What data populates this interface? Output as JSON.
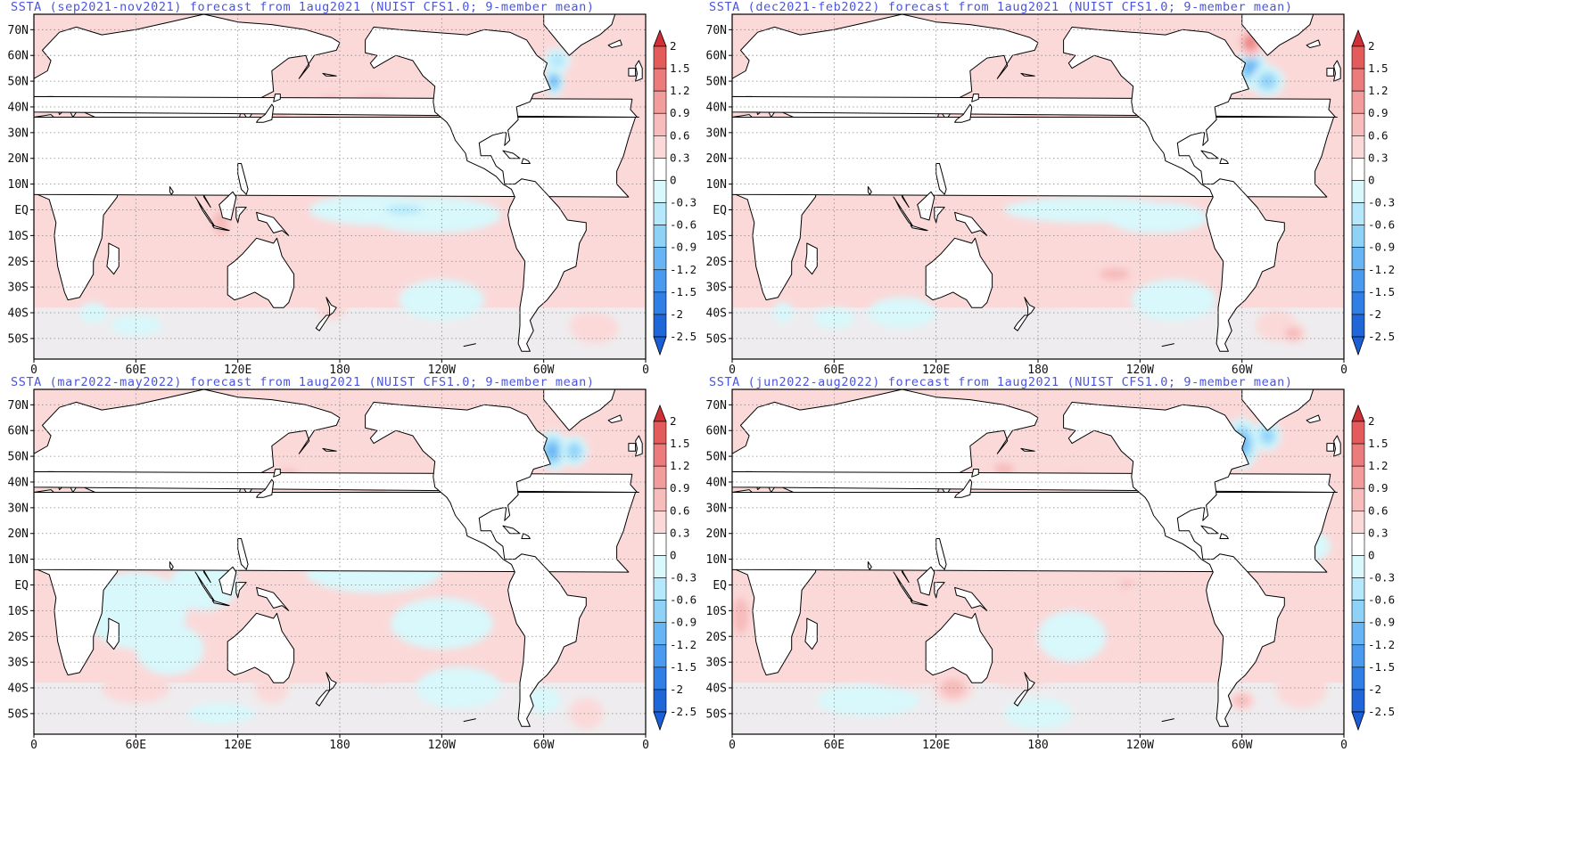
{
  "figure": {
    "panels": [
      {
        "title": "SSTA (sep2021-nov2021) forecast from 1aug2021 (NUIST CFS1.0; 9-member mean)",
        "variant": 0
      },
      {
        "title": "SSTA (dec2021-feb2022) forecast from 1aug2021 (NUIST CFS1.0; 9-member mean)",
        "variant": 1
      },
      {
        "title": "SSTA (mar2022-may2022) forecast from 1aug2021 (NUIST CFS1.0; 9-member mean)",
        "variant": 2
      },
      {
        "title": "SSTA (jun2022-aug2022) forecast from 1aug2021 (NUIST CFS1.0; 9-member mean)",
        "variant": 3
      }
    ],
    "lat_ticks": [
      "70N",
      "60N",
      "50N",
      "40N",
      "30N",
      "20N",
      "10N",
      "EQ",
      "10S",
      "20S",
      "30S",
      "40S",
      "50S"
    ],
    "lon_ticks": [
      "0",
      "60E",
      "120E",
      "180",
      "120W",
      "60W",
      "0"
    ],
    "colorbar": {
      "labels": [
        "2",
        "1.5",
        "1.2",
        "0.9",
        "0.6",
        "0.3",
        "0",
        "-0.3",
        "-0.6",
        "-0.9",
        "-1.2",
        "-1.5",
        "-2",
        "-2.5"
      ],
      "colors": [
        "#d8393c",
        "#e45b5b",
        "#ec7c7c",
        "#f29c9c",
        "#f7bcbc",
        "#fbd9d9",
        "#ffffff",
        "#d8f8fb",
        "#b6e8fb",
        "#8fd2f8",
        "#67b5f4",
        "#4a9bef",
        "#2f7fe6",
        "#1f66d8"
      ],
      "top_color": "#d03035",
      "bottom_color": "#1a5fd6"
    },
    "colors": {
      "title": "#4a55dd",
      "land": "#ffffff",
      "coast": "#000000",
      "grid": "#888888",
      "ocean_base": "#fbd9d9"
    }
  }
}
